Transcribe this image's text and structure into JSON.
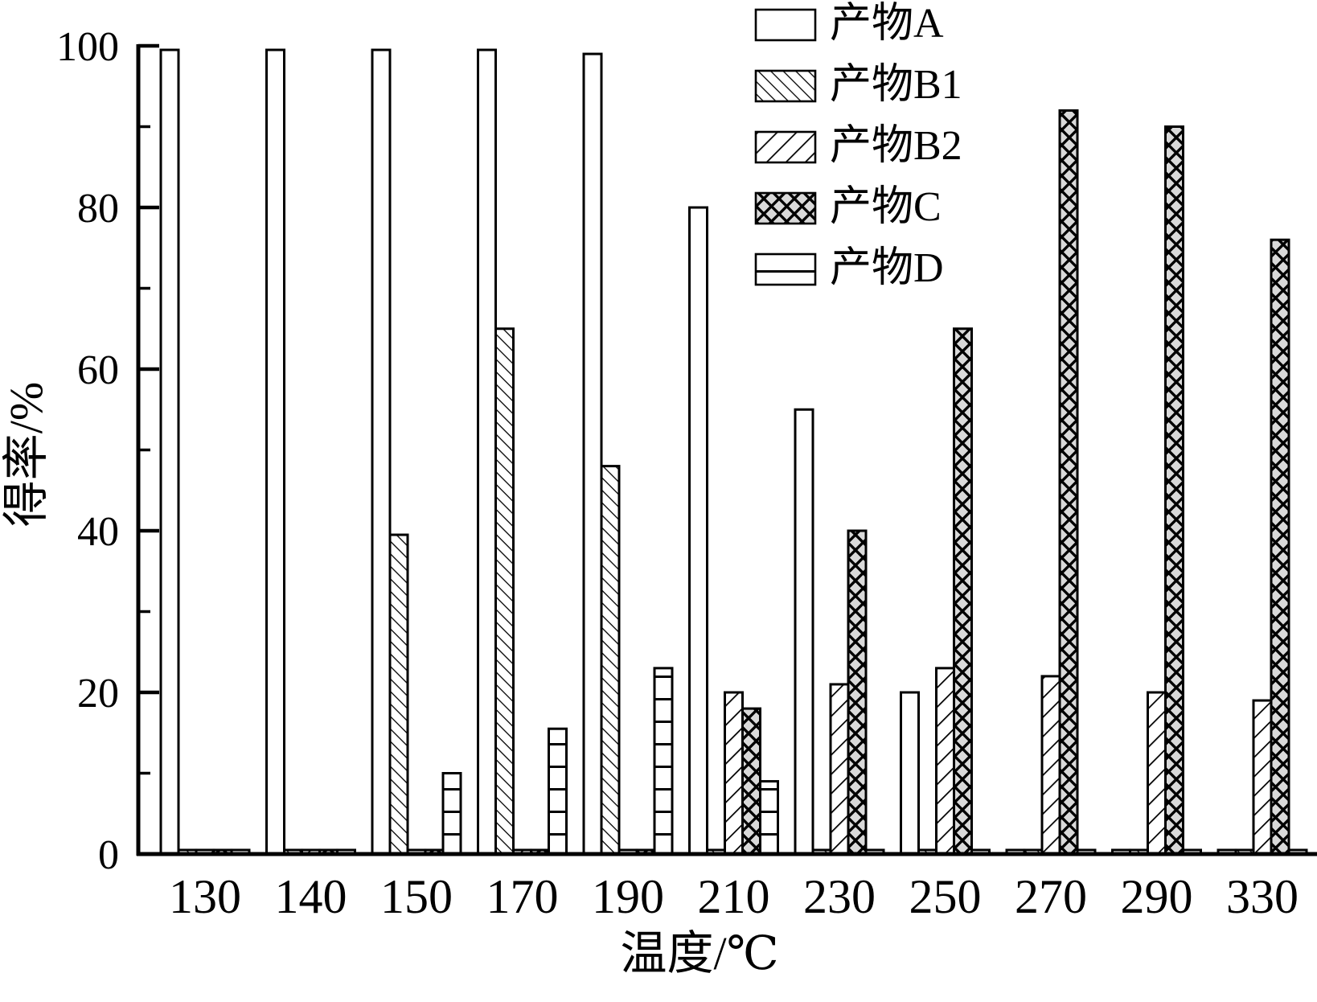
{
  "figure": {
    "background": "#ffffff",
    "ink": "#000000",
    "gray_fill": "#d9d9d9"
  },
  "chart_data": {
    "type": "bar",
    "title": "",
    "xlabel": "温度/℃",
    "ylabel": "得率/%",
    "ylim": [
      0,
      100
    ],
    "yticks_major": [
      0,
      20,
      40,
      60,
      80,
      100
    ],
    "yticks_minor": [
      10,
      30,
      50,
      70,
      90
    ],
    "grid": false,
    "legend_position": "top-right-inside",
    "categories": [
      "130",
      "140",
      "150",
      "170",
      "190",
      "210",
      "230",
      "250",
      "270",
      "290",
      "330"
    ],
    "series": [
      {
        "name": "产物A",
        "hatch": "none",
        "values": [
          99.5,
          99.5,
          99.5,
          99.5,
          99,
          80,
          55,
          20,
          0.5,
          0.5,
          0.5
        ]
      },
      {
        "name": "产物B1",
        "hatch": "backslash",
        "values": [
          0.5,
          0.5,
          39.5,
          65,
          48,
          0.5,
          0.5,
          0.5,
          0.5,
          0.5,
          0.5
        ]
      },
      {
        "name": "产物B2",
        "hatch": "slash",
        "values": [
          0.5,
          0.5,
          0.5,
          0.5,
          0.5,
          20,
          21,
          23,
          22,
          20,
          19
        ]
      },
      {
        "name": "产物C",
        "hatch": "crosshatch",
        "values": [
          0.5,
          0.5,
          0.5,
          0.5,
          0.5,
          18,
          40,
          65,
          92,
          90,
          76
        ]
      },
      {
        "name": "产物D",
        "hatch": "horizontal",
        "values": [
          0.5,
          0.5,
          10,
          15.5,
          23,
          9,
          0.5,
          0.5,
          0.5,
          0.5,
          0.5
        ]
      }
    ]
  }
}
